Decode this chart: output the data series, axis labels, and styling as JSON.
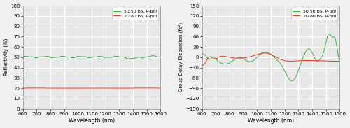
{
  "left": {
    "xlabel": "Wavelength (nm)",
    "ylabel": "Reflectivity (%)",
    "xlim": [
      600,
      1600
    ],
    "ylim": [
      0,
      100
    ],
    "yticks": [
      0,
      10,
      20,
      30,
      40,
      50,
      60,
      70,
      80,
      90,
      100
    ],
    "xticks": [
      600,
      700,
      800,
      900,
      1000,
      1100,
      1200,
      1300,
      1400,
      1500,
      1600
    ],
    "green_label": "50:50 BS, P-pol",
    "red_label": "20:80 BS, P-pol",
    "green_color": "#3cb043",
    "red_color": "#e8391a"
  },
  "right": {
    "xlabel": "Wavelength (nm)",
    "ylabel": "Group Delay Dispersion (fs²)",
    "xlim": [
      600,
      1600
    ],
    "ylim": [
      -150,
      150
    ],
    "yticks": [
      -150,
      -120,
      -90,
      -60,
      -30,
      0,
      30,
      60,
      90,
      120,
      150
    ],
    "xticks": [
      600,
      700,
      800,
      900,
      1000,
      1100,
      1200,
      1300,
      1400,
      1500,
      1600
    ],
    "green_label": "50:50 BS, P-pol",
    "red_label": "20:80 BS, P-pol",
    "green_color": "#3cb043",
    "red_color": "#e8391a"
  },
  "bg_color": "#e8e8e8",
  "grid_color": "#ffffff",
  "fig_bg": "#f0f0f0"
}
